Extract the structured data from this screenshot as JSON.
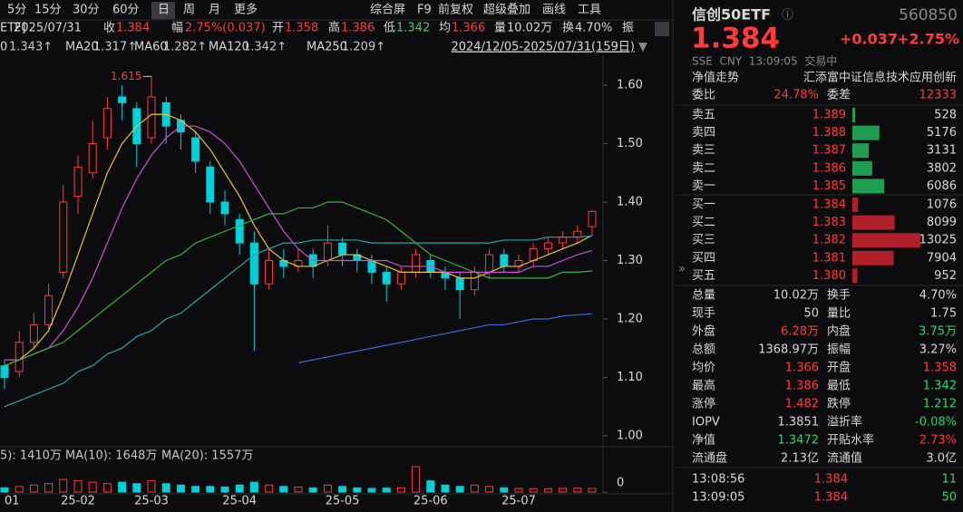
{
  "toolbar": {
    "periods": [
      "5分",
      "15分",
      "30分",
      "60分",
      "日",
      "周",
      "月",
      "更多"
    ],
    "tools": [
      "综合屏",
      "F9",
      "前复权",
      "超级叠加",
      "画线",
      "工具"
    ]
  },
  "info_bar": [
    "ETF]",
    "2025/07/31",
    "收",
    "1.384",
    "幅",
    "2.75%(0.037)",
    "开",
    "1.358",
    "高",
    "1.386",
    "低",
    "1.342",
    "均",
    "1.366",
    "量",
    "10.02万",
    "换",
    "4.70%",
    "振"
  ],
  "range_label": "2024/12/05-2025/07/31(159日)",
  "chart_data": {
    "type": "candlestick",
    "annotation": "1.615",
    "ylim": [
      0.986,
      1.645
    ],
    "yticks": [
      {
        "value": 1.6,
        "label": "1.60"
      },
      {
        "value": 1.5,
        "label": "1.50"
      },
      {
        "value": 1.4,
        "label": "1.40"
      },
      {
        "value": 1.3,
        "label": "1.30"
      },
      {
        "value": 1.2,
        "label": "1.20"
      },
      {
        "value": 1.1,
        "label": "1.10"
      },
      {
        "value": 1.0,
        "label": "1.00"
      }
    ],
    "categories": [
      "01",
      null,
      null,
      null,
      null,
      "25-02",
      null,
      null,
      null,
      null,
      "25-03",
      null,
      null,
      null,
      null,
      null,
      "25-04",
      null,
      null,
      null,
      null,
      null,
      null,
      "25-05",
      null,
      null,
      null,
      null,
      null,
      "25-06",
      null,
      null,
      null,
      null,
      null,
      "25-07",
      null,
      null,
      null,
      null,
      null
    ],
    "candles": [
      [
        1.12,
        1.13,
        1.08,
        1.1
      ],
      [
        1.11,
        1.18,
        1.1,
        1.16
      ],
      [
        1.16,
        1.21,
        1.15,
        1.19
      ],
      [
        1.19,
        1.26,
        1.18,
        1.24
      ],
      [
        1.28,
        1.43,
        1.27,
        1.4
      ],
      [
        1.41,
        1.48,
        1.38,
        1.46
      ],
      [
        1.45,
        1.54,
        1.44,
        1.5
      ],
      [
        1.51,
        1.58,
        1.49,
        1.56
      ],
      [
        1.58,
        1.6,
        1.54,
        1.57
      ],
      [
        1.56,
        1.57,
        1.46,
        1.5
      ],
      [
        1.51,
        1.615,
        1.5,
        1.58
      ],
      [
        1.57,
        1.58,
        1.5,
        1.53
      ],
      [
        1.54,
        1.55,
        1.49,
        1.52
      ],
      [
        1.51,
        1.52,
        1.45,
        1.47
      ],
      [
        1.46,
        1.47,
        1.38,
        1.4
      ],
      [
        1.4,
        1.42,
        1.36,
        1.38
      ],
      [
        1.37,
        1.38,
        1.31,
        1.33
      ],
      [
        1.33,
        1.35,
        1.145,
        1.26
      ],
      [
        1.26,
        1.32,
        1.25,
        1.3
      ],
      [
        1.3,
        1.32,
        1.27,
        1.29
      ],
      [
        1.29,
        1.32,
        1.28,
        1.3
      ],
      [
        1.31,
        1.32,
        1.27,
        1.29
      ],
      [
        1.3,
        1.36,
        1.29,
        1.33
      ],
      [
        1.33,
        1.34,
        1.29,
        1.31
      ],
      [
        1.31,
        1.32,
        1.28,
        1.3
      ],
      [
        1.3,
        1.31,
        1.26,
        1.28
      ],
      [
        1.28,
        1.29,
        1.23,
        1.26
      ],
      [
        1.26,
        1.29,
        1.25,
        1.28
      ],
      [
        1.28,
        1.32,
        1.27,
        1.31
      ],
      [
        1.3,
        1.31,
        1.27,
        1.28
      ],
      [
        1.28,
        1.29,
        1.25,
        1.27
      ],
      [
        1.27,
        1.28,
        1.2,
        1.25
      ],
      [
        1.25,
        1.29,
        1.24,
        1.28
      ],
      [
        1.28,
        1.32,
        1.27,
        1.31
      ],
      [
        1.31,
        1.32,
        1.28,
        1.29
      ],
      [
        1.29,
        1.31,
        1.28,
        1.3
      ],
      [
        1.3,
        1.33,
        1.29,
        1.32
      ],
      [
        1.32,
        1.34,
        1.31,
        1.33
      ],
      [
        1.33,
        1.35,
        1.32,
        1.34
      ],
      [
        1.34,
        1.36,
        1.33,
        1.35
      ],
      [
        1.358,
        1.386,
        1.342,
        1.384
      ]
    ],
    "series": [
      {
        "name": "0",
        "legend_value": "1.343↑",
        "color": "#e8c43a",
        "values": [
          1.12,
          1.13,
          1.15,
          1.18,
          1.24,
          1.31,
          1.38,
          1.45,
          1.5,
          1.53,
          1.55,
          1.55,
          1.54,
          1.52,
          1.49,
          1.45,
          1.41,
          1.36,
          1.32,
          1.3,
          1.29,
          1.29,
          1.3,
          1.31,
          1.31,
          1.3,
          1.29,
          1.28,
          1.28,
          1.28,
          1.28,
          1.27,
          1.27,
          1.28,
          1.29,
          1.29,
          1.3,
          1.31,
          1.32,
          1.33,
          1.343
        ]
      },
      {
        "name": "MA20",
        "legend_value": "1.317↑",
        "color": "#d24fd8",
        "values": [
          1.13,
          1.13,
          1.14,
          1.15,
          1.18,
          1.22,
          1.27,
          1.33,
          1.39,
          1.44,
          1.48,
          1.51,
          1.53,
          1.53,
          1.52,
          1.5,
          1.47,
          1.43,
          1.39,
          1.35,
          1.32,
          1.3,
          1.3,
          1.3,
          1.3,
          1.3,
          1.3,
          1.29,
          1.29,
          1.29,
          1.28,
          1.28,
          1.28,
          1.28,
          1.28,
          1.28,
          1.29,
          1.29,
          1.3,
          1.31,
          1.317
        ]
      },
      {
        "name": "MA60",
        "legend_value": "1.282↑",
        "color": "#3fae3f",
        "values": [
          1.12,
          1.13,
          1.14,
          1.15,
          1.16,
          1.18,
          1.2,
          1.22,
          1.24,
          1.26,
          1.28,
          1.3,
          1.31,
          1.33,
          1.34,
          1.35,
          1.36,
          1.37,
          1.38,
          1.38,
          1.39,
          1.39,
          1.4,
          1.4,
          1.39,
          1.38,
          1.37,
          1.35,
          1.33,
          1.31,
          1.3,
          1.29,
          1.28,
          1.27,
          1.27,
          1.27,
          1.27,
          1.27,
          1.28,
          1.28,
          1.282
        ]
      },
      {
        "name": "MA120",
        "legend_value": "1.342↑",
        "color": "#2aa6a6",
        "values": [
          1.05,
          1.06,
          1.07,
          1.08,
          1.09,
          1.11,
          1.12,
          1.14,
          1.15,
          1.17,
          1.18,
          1.2,
          1.21,
          1.23,
          1.25,
          1.27,
          1.29,
          1.31,
          1.32,
          1.33,
          1.33,
          1.335,
          1.335,
          1.335,
          1.335,
          1.33,
          1.33,
          1.33,
          1.33,
          1.33,
          1.33,
          1.33,
          1.33,
          1.33,
          1.335,
          1.335,
          1.335,
          1.34,
          1.34,
          1.34,
          1.342
        ]
      },
      {
        "name": "MA250",
        "legend_value": "1.209↑",
        "color": "#3a6ad8",
        "values": [
          null,
          null,
          null,
          null,
          null,
          null,
          null,
          null,
          null,
          null,
          null,
          null,
          null,
          null,
          null,
          null,
          null,
          null,
          null,
          null,
          1.125,
          1.13,
          1.135,
          1.14,
          1.145,
          1.15,
          1.155,
          1.16,
          1.165,
          1.17,
          1.175,
          1.18,
          1.185,
          1.19,
          1.19,
          1.195,
          1.2,
          1.2,
          1.205,
          1.207,
          1.209
        ]
      }
    ],
    "volume": {
      "legend": [
        "5): 1410万",
        "MA(10): 1648万",
        "MA(20): 1557万"
      ],
      "vlim": [
        0,
        10000
      ],
      "vticks": [
        0
      ],
      "values": [
        1500,
        2000,
        2500,
        3000,
        4500,
        4000,
        3500,
        3000,
        3500,
        3000,
        4000,
        3000,
        2500,
        2000,
        2000,
        1800,
        2500,
        3500,
        2500,
        2000,
        1800,
        1500,
        2500,
        2000,
        1500,
        1300,
        1400,
        1500,
        9000,
        4000,
        2500,
        2000,
        2500,
        2000,
        1500,
        1300,
        1200,
        1200,
        1300,
        1400,
        1300
      ]
    }
  },
  "quote": {
    "name": "信创50ETF",
    "code": "560850",
    "price": "1.384",
    "change": "+0.037",
    "change_pct": "+2.75%",
    "status": "SSE  CNY  13:09:05  交易中",
    "nav_trend": "净值走势",
    "fund_name": "汇添富中证信息技术应用创新",
    "ratio_label": "委比",
    "ratio": "24.78%",
    "diff_label": "委差",
    "diff": "12333",
    "sell": [
      {
        "label": "卖五",
        "price": "1.389",
        "volume": 528
      },
      {
        "label": "卖四",
        "price": "1.388",
        "volume": 5176
      },
      {
        "label": "卖三",
        "price": "1.387",
        "volume": 3131
      },
      {
        "label": "卖二",
        "price": "1.386",
        "volume": 3802
      },
      {
        "label": "卖一",
        "price": "1.385",
        "volume": 6086
      }
    ],
    "buy": [
      {
        "label": "买一",
        "price": "1.384",
        "volume": 1076
      },
      {
        "label": "买二",
        "price": "1.383",
        "volume": 8099
      },
      {
        "label": "买三",
        "price": "1.382",
        "volume": 13025
      },
      {
        "label": "买四",
        "price": "1.381",
        "volume": 7904
      },
      {
        "label": "买五",
        "price": "1.380",
        "volume": 952
      }
    ],
    "stats": [
      [
        "总量",
        "10.02万",
        "换手",
        "4.70%"
      ],
      [
        "现手",
        "50",
        "量比",
        "1.75"
      ],
      [
        "外盘",
        "6.28万",
        "内盘",
        "3.75万"
      ],
      [
        "总额",
        "1368.97万",
        "振幅",
        "3.27%"
      ],
      [
        "均价",
        "1.366",
        "开盘",
        "1.358"
      ],
      [
        "最高",
        "1.386",
        "最低",
        "1.342"
      ],
      [
        "涨停",
        "1.482",
        "跌停",
        "1.212"
      ],
      [
        "IOPV",
        "1.3851",
        "溢折率",
        "-0.08%"
      ],
      [
        "净值",
        "1.3472",
        "开贴水率",
        "2.73%"
      ],
      [
        "流通盘",
        "2.13亿",
        "流通值",
        "3.0亿"
      ]
    ],
    "trades": [
      [
        "13:08:56",
        "1.384",
        "11"
      ],
      [
        "13:09:05",
        "1.384",
        "50"
      ]
    ]
  }
}
